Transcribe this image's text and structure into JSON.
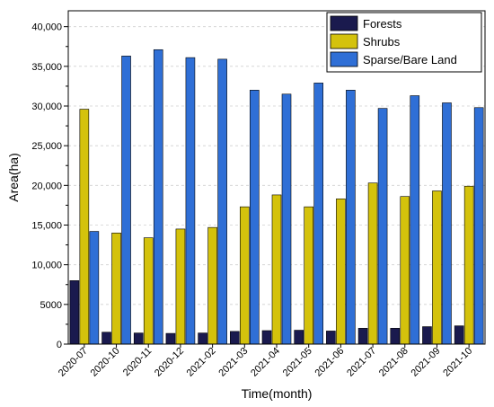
{
  "chart_data": {
    "type": "bar",
    "xlabel": "Time(month)",
    "ylabel": "Area(ha)",
    "ylim": [
      0,
      42000
    ],
    "yticks": [
      0,
      5000,
      10000,
      15000,
      20000,
      25000,
      30000,
      35000,
      40000
    ],
    "ytick_labels": [
      "0",
      "5000",
      "10,000",
      "15,000",
      "20,000",
      "25,000",
      "30,000",
      "35,000",
      "40,000"
    ],
    "categories": [
      "2020-07",
      "2020-10",
      "2020-11",
      "2020-12",
      "2021-02",
      "2021-03",
      "2021-04",
      "2021-05",
      "2021-06",
      "2021-07",
      "2021-08",
      "2021-09",
      "2021-10"
    ],
    "series": [
      {
        "name": "Forests",
        "color": "#1a1a4e",
        "values": [
          8000,
          1500,
          1400,
          1350,
          1400,
          1600,
          1700,
          1750,
          1650,
          2000,
          2000,
          2200,
          2300
        ]
      },
      {
        "name": "Shrubs",
        "color": "#d4c20c",
        "values": [
          29600,
          14000,
          13400,
          14500,
          14700,
          17300,
          18800,
          17300,
          18300,
          20300,
          18600,
          19300,
          19900
        ]
      },
      {
        "name": "Sparse/Bare Land",
        "color": "#2f6fd6",
        "values": [
          14200,
          36300,
          37100,
          36100,
          35900,
          32000,
          31500,
          32900,
          32000,
          29700,
          31300,
          30400,
          29800
        ]
      }
    ],
    "legend_position": "top-right",
    "grid": true
  }
}
